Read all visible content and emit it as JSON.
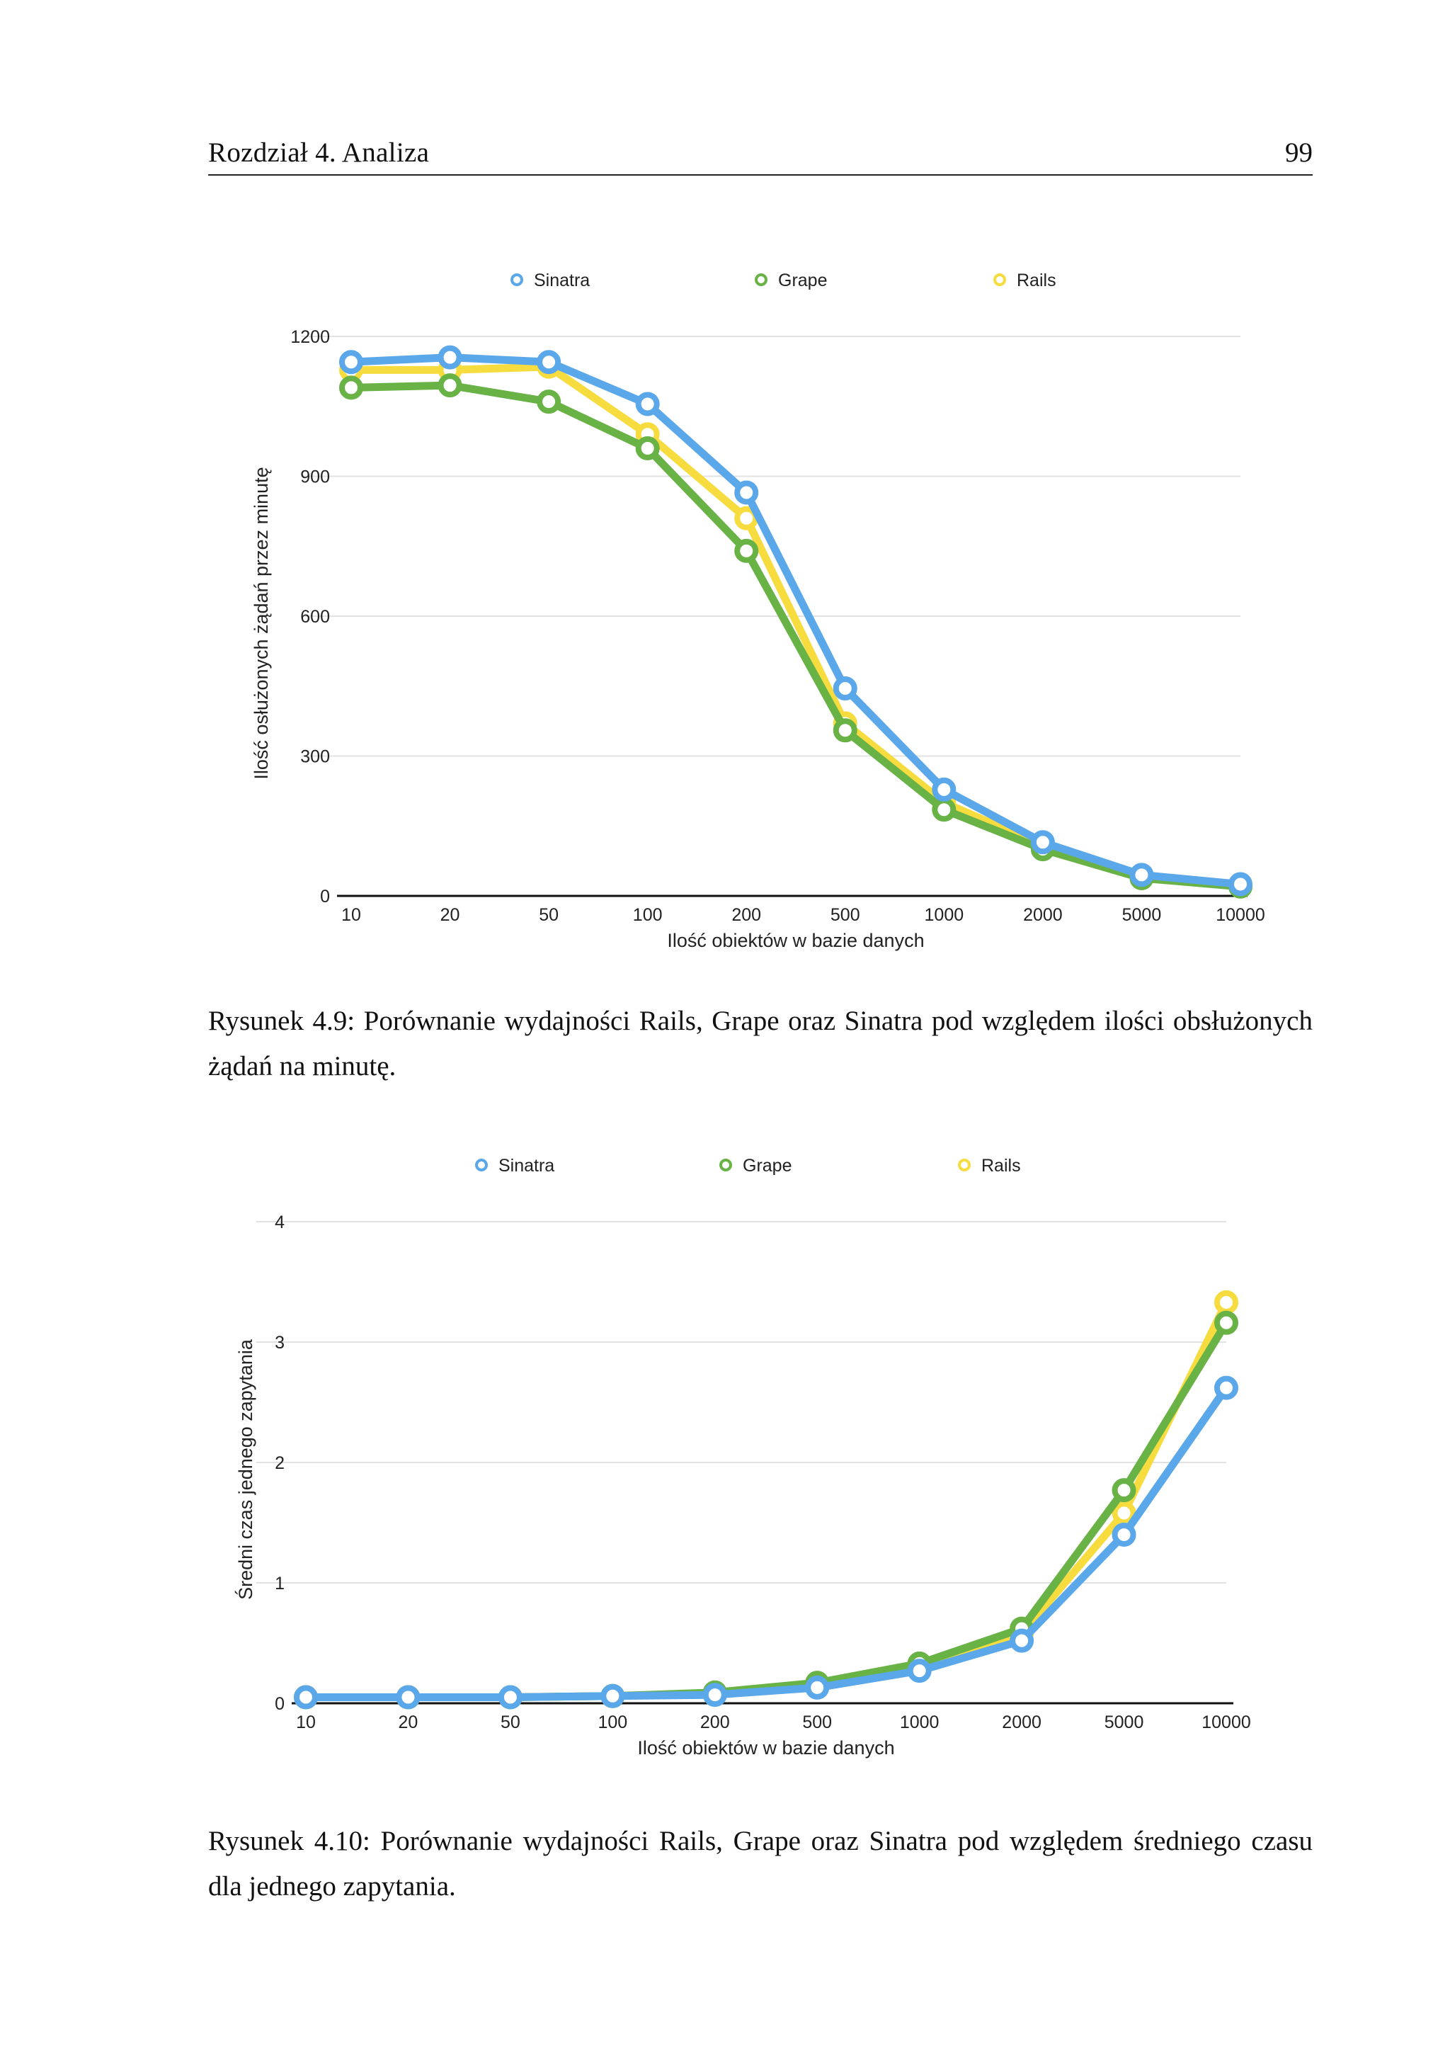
{
  "header": {
    "chapter": "Rozdział 4. Analiza",
    "page_number": "99"
  },
  "legend_colors": {
    "Sinatra": "#5aa7ea",
    "Grape": "#69b246",
    "Rails": "#f7dc3f"
  },
  "figures": [
    {
      "caption": "Rysunek 4.9: Porównanie wydajności Rails, Grape oraz Sinatra pod względem ilości obsłużonych żądań na minutę."
    },
    {
      "caption": "Rysunek 4.10: Porównanie wydajności Rails, Grape oraz Sinatra pod względem średniego czasu dla jednego zapytania."
    }
  ],
  "chart_data": [
    {
      "type": "line",
      "xlabel": "Ilość obiektów w bazie danych",
      "ylabel": "Ilość osłużonych żądań przez minutę",
      "categories": [
        "10",
        "20",
        "50",
        "100",
        "200",
        "500",
        "1000",
        "2000",
        "5000",
        "10000"
      ],
      "ylim": [
        0,
        1200
      ],
      "yticks": [
        "0",
        "300",
        "600",
        "900",
        "1200"
      ],
      "ytick_values": [
        0,
        300,
        600,
        900,
        1200
      ],
      "grid": true,
      "legend_position": "top",
      "series": [
        {
          "name": "Sinatra",
          "color": "#5aa7ea",
          "values": [
            1145,
            1155,
            1145,
            1055,
            865,
            445,
            228,
            115,
            45,
            25
          ]
        },
        {
          "name": "Grape",
          "color": "#69b246",
          "values": [
            1090,
            1095,
            1060,
            960,
            740,
            355,
            185,
            100,
            38,
            20
          ]
        },
        {
          "name": "Rails",
          "color": "#f7dc3f",
          "values": [
            1128,
            1128,
            1135,
            990,
            810,
            370,
            200,
            108,
            40,
            22
          ]
        }
      ]
    },
    {
      "type": "line",
      "xlabel": "Ilość obiektów w bazie danych",
      "ylabel": "Średni czas jednego zapytania",
      "categories": [
        "10",
        "20",
        "50",
        "100",
        "200",
        "500",
        "1000",
        "2000",
        "5000",
        "10000"
      ],
      "ylim": [
        0,
        4
      ],
      "yticks": [
        "0",
        "1",
        "2",
        "3",
        "4"
      ],
      "ytick_values": [
        0,
        1,
        2,
        3,
        4
      ],
      "grid": true,
      "legend_position": "top",
      "series": [
        {
          "name": "Sinatra",
          "color": "#5aa7ea",
          "values": [
            0.05,
            0.05,
            0.05,
            0.06,
            0.07,
            0.13,
            0.27,
            0.52,
            1.4,
            2.62
          ]
        },
        {
          "name": "Grape",
          "color": "#69b246",
          "values": [
            0.05,
            0.05,
            0.05,
            0.06,
            0.09,
            0.17,
            0.33,
            0.62,
            1.77,
            3.16
          ]
        },
        {
          "name": "Rails",
          "color": "#f7dc3f",
          "values": [
            0.05,
            0.05,
            0.05,
            0.06,
            0.08,
            0.15,
            0.3,
            0.58,
            1.58,
            3.33
          ]
        }
      ]
    }
  ]
}
